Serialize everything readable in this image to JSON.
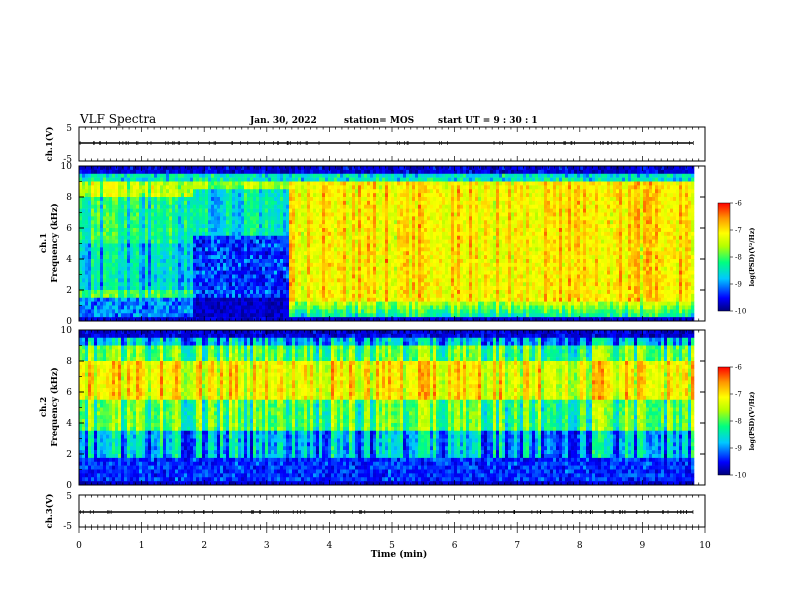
{
  "header": {
    "title": "VLF Spectra",
    "date": "Jan. 30, 2022",
    "station": "station= MOS",
    "start": "start UT =  9 : 30 : 1"
  },
  "chart_data": [
    {
      "type": "line",
      "panel": "ch1-waveform",
      "ylabel": "ch.1(V)",
      "ylim": [
        -5,
        5
      ],
      "ytick_labels": [
        "5",
        "-5"
      ],
      "xlim": [
        0,
        10
      ],
      "description_values": {
        "x": [
          0,
          9.82
        ],
        "y": [
          -1.5,
          -1.5
        ]
      }
    },
    {
      "type": "heatmap",
      "panel": "ch1-spectrogram",
      "ylabel": "ch.1\nFrequency (kHz)",
      "ylim": [
        0,
        10
      ],
      "xlim": [
        0,
        10
      ],
      "ytick_labels": [
        "0",
        "2",
        "4",
        "6",
        "8",
        "10"
      ],
      "colorbar": {
        "label": "log(PSD)(V²/Hz)",
        "range": [
          -10,
          -6
        ],
        "tick_labels": [
          "-6",
          "-7",
          "-8",
          "-9",
          "-10"
        ]
      },
      "segments": [
        {
          "t0": 0.0,
          "t1": 1.8,
          "state": "moderate"
        },
        {
          "t0": 1.8,
          "t1": 3.35,
          "state": "quiet"
        },
        {
          "t0": 3.35,
          "t1": 9.82,
          "state": "high"
        }
      ]
    },
    {
      "type": "heatmap",
      "panel": "ch2-spectrogram",
      "ylabel": "ch.2\nFrequency (kHz)",
      "ylim": [
        0,
        10
      ],
      "xlim": [
        0,
        10
      ],
      "ytick_labels": [
        "0",
        "2",
        "4",
        "6",
        "8",
        "10"
      ],
      "colorbar": {
        "label": "log(PSD)(V²/Hz)",
        "range": [
          -10,
          -6
        ],
        "tick_labels": [
          "-6",
          "-7",
          "-8",
          "-9",
          "-10"
        ]
      },
      "peak_band_khz": [
        5.5,
        8.0
      ]
    },
    {
      "type": "line",
      "panel": "ch3-waveform",
      "ylabel": "ch.3(V)",
      "ylim": [
        -5,
        5
      ],
      "ytick_labels": [
        "5",
        "-5"
      ],
      "xlim": [
        0,
        10
      ],
      "description_values": {
        "x": [
          0,
          9.82
        ],
        "y": [
          -1.5,
          -1.5
        ]
      }
    }
  ],
  "x_axis": {
    "label": "Time (min)",
    "tick_labels": [
      "0",
      "1",
      "2",
      "3",
      "4",
      "5",
      "6",
      "7",
      "8",
      "9",
      "10"
    ]
  },
  "colors": {
    "cmap": [
      "#00007a",
      "#0000ff",
      "#00c8ff",
      "#00ff80",
      "#b4ff00",
      "#ffff00",
      "#ff9600",
      "#ff0000"
    ]
  }
}
